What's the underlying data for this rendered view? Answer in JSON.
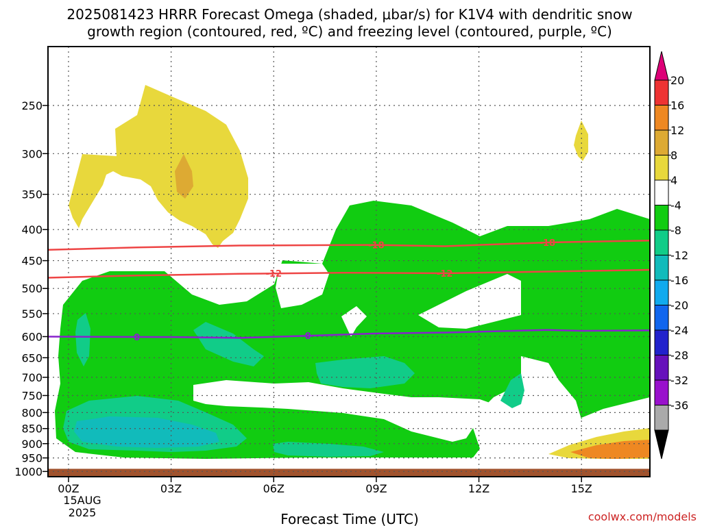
{
  "chart_data": {
    "type": "contour",
    "title_line1": "2025081423 HRRR Forecast Omega (shaded, μbar/s) for K1V4 with dendritic snow",
    "title_line2": "growth region (contoured, red, ºC) and freezing level (contoured, purple, ºC)",
    "xlabel": "Forecast Time (UTC)",
    "x_ticks": [
      "00Z",
      "03Z",
      "06Z",
      "09Z",
      "12Z",
      "15Z"
    ],
    "x_date_line1": "15AUG",
    "x_date_line2": "2025",
    "x_range_hours": [
      -0.6,
      17
    ],
    "y_ticks": [
      "250",
      "300",
      "350",
      "400",
      "450",
      "500",
      "550",
      "600",
      "650",
      "700",
      "750",
      "800",
      "850",
      "900",
      "950",
      "1000"
    ],
    "y_range_mb": [
      200,
      1020
    ],
    "y_scale": "log-pressure",
    "grid": true,
    "credit": "coolwx.com/models",
    "colorbar": {
      "labels": [
        "20",
        "16",
        "12",
        "8",
        "4",
        "-4",
        "-8",
        "-12",
        "-16",
        "-20",
        "-24",
        "-28",
        "-32",
        "-36"
      ],
      "colors": [
        "#dd0077",
        "#ee3333",
        "#ee8822",
        "#ddaa33",
        "#e8d83c",
        "#ffffff",
        "#11cc11",
        "#11cc88",
        "#11bbbb",
        "#11aaee",
        "#1166ee",
        "#2222cc",
        "#6611bb",
        "#9911cc",
        "#aaaaaa",
        "#000000"
      ]
    },
    "contours": [
      {
        "label": "-18",
        "color": "#ee4444",
        "hours": [
          -0.6,
          2,
          5,
          9,
          11,
          14,
          17
        ],
        "mb": [
          432,
          428,
          425,
          424,
          426,
          420,
          417
        ],
        "label_hours": [
          9,
          14
        ]
      },
      {
        "label": "-12",
        "color": "#ee4444",
        "hours": [
          -0.6,
          2,
          5,
          8,
          11,
          14,
          17
        ],
        "mb": [
          480,
          476,
          473,
          471,
          472,
          469,
          466
        ],
        "label_hours": [
          6,
          11
        ]
      },
      {
        "label": "0",
        "color": "#8822cc",
        "hours": [
          -0.6,
          3,
          5,
          7,
          9,
          11,
          14,
          15,
          17
        ],
        "mb": [
          600,
          601,
          603,
          598,
          593,
          591,
          585,
          587,
          586
        ],
        "label_hours": [
          2,
          7
        ]
      }
    ],
    "surface_mb": 990
  }
}
